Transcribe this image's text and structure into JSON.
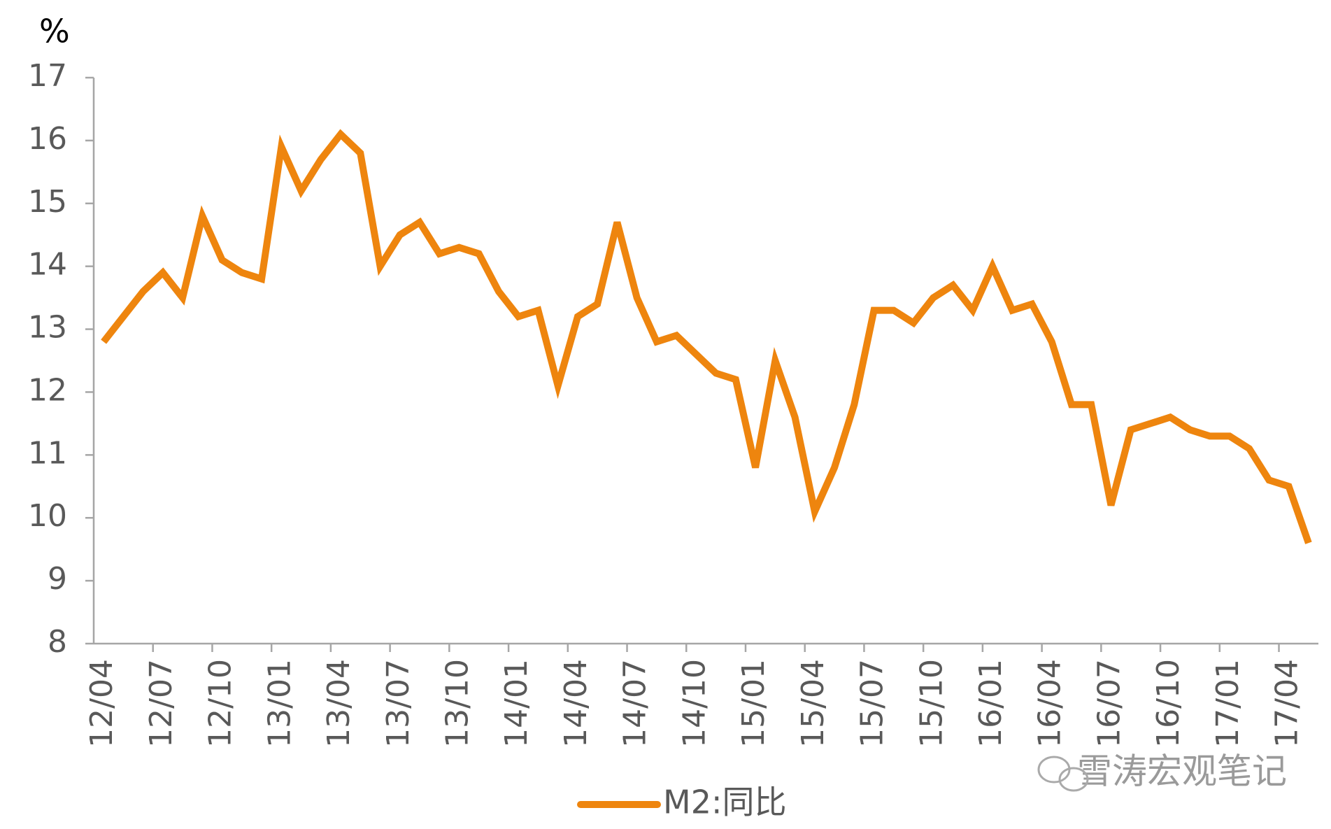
{
  "chart_data": {
    "type": "line",
    "y_unit": "%",
    "categories": [
      "12/04",
      null,
      null,
      "12/07",
      null,
      null,
      "12/10",
      null,
      null,
      "13/01",
      null,
      null,
      "13/04",
      null,
      null,
      "13/07",
      null,
      null,
      "13/10",
      null,
      null,
      "14/01",
      null,
      null,
      "14/04",
      null,
      null,
      "14/07",
      null,
      null,
      "14/10",
      null,
      null,
      "15/01",
      null,
      null,
      "15/04",
      null,
      null,
      "15/07",
      null,
      null,
      "15/10",
      null,
      null,
      "16/01",
      null,
      null,
      "16/04",
      null,
      null,
      "16/07",
      null,
      null,
      "16/10",
      null,
      null,
      "17/01",
      null,
      null,
      "17/04",
      null
    ],
    "series": [
      {
        "name": "M2:同比",
        "color": "#ee850e",
        "values": [
          12.8,
          13.2,
          13.6,
          13.9,
          13.5,
          14.8,
          14.1,
          13.9,
          13.8,
          15.9,
          15.2,
          15.7,
          16.1,
          15.8,
          14.0,
          14.5,
          14.7,
          14.2,
          14.3,
          14.2,
          13.6,
          13.2,
          13.3,
          12.1,
          13.2,
          13.4,
          14.7,
          13.5,
          12.8,
          12.9,
          12.6,
          12.3,
          12.2,
          10.8,
          12.5,
          11.6,
          10.1,
          10.8,
          11.8,
          13.3,
          13.3,
          13.1,
          13.5,
          13.7,
          13.3,
          14.0,
          13.3,
          13.4,
          12.8,
          11.8,
          11.8,
          10.2,
          11.4,
          11.5,
          11.6,
          11.4,
          11.3,
          11.3,
          11.1,
          10.6,
          10.5,
          9.6
        ]
      }
    ],
    "ylim": [
      8,
      17
    ],
    "yticks": [
      8,
      9,
      10,
      11,
      12,
      13,
      14,
      15,
      16,
      17
    ],
    "grid": false,
    "legend": "bottom",
    "watermark": "雪涛宏观笔记"
  }
}
